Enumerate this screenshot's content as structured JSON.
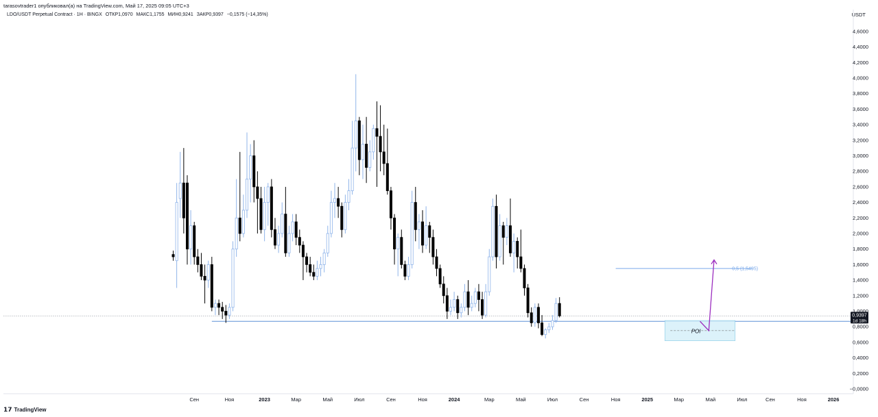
{
  "header": {
    "publisher_line": "tarasovtrader1 опубликовал(а) на TradingView.com, Май 17, 2025 09:05 UTC+3",
    "symbol": "LDO/USDT Perpetual Contract · 1H · BINGX",
    "open": "ОТКР1,0970",
    "high": "МАКС1,1755",
    "low": "МИН0,9241",
    "close": "ЗАКР0,9397",
    "change": "−0,1575 (−14,35%)",
    "currency": "USDT"
  },
  "brand": {
    "mark": "𝟭𝟳",
    "name": "TradingView"
  },
  "colors": {
    "up": "#8fb4ea",
    "down": "#000000",
    "level_line": "#5d8fd6",
    "fib_line": "#7aa9ea",
    "poi_fill": "#d6f0fa",
    "poi_border": "#7fc8e6",
    "arrow": "#9b2dbf",
    "last_price_bg": "#131722"
  },
  "chart_data": {
    "type": "candlestick",
    "ylim": [
      -0.1,
      4.7
    ],
    "y_ticks": [
      "4,6000",
      "4,4000",
      "4,2000",
      "4,0000",
      "3,8000",
      "3,6000",
      "3,4000",
      "3,2000",
      "3,0000",
      "2,8000",
      "2,6000",
      "2,4000",
      "2,2000",
      "2,0000",
      "1,8000",
      "1,6000",
      "1,4000",
      "1,2000",
      "1,0000",
      "0,8000",
      "0,6000",
      "0,4000",
      "0,2000",
      "−0,0000"
    ],
    "y_tick_values": [
      4.6,
      4.4,
      4.2,
      4.0,
      3.8,
      3.6,
      3.4,
      3.2,
      3.0,
      2.8,
      2.6,
      2.4,
      2.2,
      2.0,
      1.8,
      1.6,
      1.4,
      1.2,
      1.0,
      0.8,
      0.6,
      0.4,
      0.2,
      0.0
    ],
    "x_ticks": [
      {
        "label": "Сен",
        "i": 6,
        "year": false
      },
      {
        "label": "Ноя",
        "i": 16,
        "year": false
      },
      {
        "label": "2023",
        "i": 26,
        "year": true
      },
      {
        "label": "Мар",
        "i": 35,
        "year": false
      },
      {
        "label": "Май",
        "i": 44,
        "year": false
      },
      {
        "label": "Июл",
        "i": 53,
        "year": false
      },
      {
        "label": "Сен",
        "i": 62,
        "year": false
      },
      {
        "label": "Ноя",
        "i": 71,
        "year": false
      },
      {
        "label": "2024",
        "i": 80,
        "year": true
      },
      {
        "label": "Мар",
        "i": 90,
        "year": false
      },
      {
        "label": "Май",
        "i": 99,
        "year": false
      },
      {
        "label": "Июл",
        "i": 108,
        "year": false
      },
      {
        "label": "Сен",
        "i": 117,
        "year": false
      },
      {
        "label": "Ноя",
        "i": 126,
        "year": false
      },
      {
        "label": "2025",
        "i": 135,
        "year": true
      },
      {
        "label": "Мар",
        "i": 144,
        "year": false
      },
      {
        "label": "Май",
        "i": 153,
        "year": false
      },
      {
        "label": "Июл",
        "i": 162,
        "year": false
      },
      {
        "label": "Сен",
        "i": 170,
        "year": false
      },
      {
        "label": "Ноя",
        "i": 179,
        "year": false
      },
      {
        "label": "2026",
        "i": 188,
        "year": true
      }
    ],
    "candles": [
      [
        1.73,
        1.78,
        1.7,
        1.65
      ],
      [
        1.65,
        2.65,
        2.4,
        1.3
      ],
      [
        2.45,
        3.05,
        2.65,
        2.2
      ],
      [
        2.65,
        3.1,
        2.2,
        2.0
      ],
      [
        2.65,
        2.75,
        1.8,
        1.6
      ],
      [
        1.8,
        2.3,
        2.1,
        1.6
      ],
      [
        2.1,
        2.15,
        1.7,
        1.6
      ],
      [
        1.7,
        1.8,
        1.6,
        1.5
      ],
      [
        1.6,
        1.75,
        1.45,
        1.4
      ],
      [
        1.45,
        1.6,
        1.4,
        1.1
      ],
      [
        1.4,
        1.65,
        1.6,
        1.3
      ],
      [
        1.6,
        1.7,
        1.05,
        1.0
      ],
      [
        1.05,
        1.15,
        1.1,
        0.95
      ],
      [
        1.1,
        1.15,
        1.05,
        0.95
      ],
      [
        1.05,
        1.12,
        1.0,
        0.9
      ],
      [
        1.0,
        1.08,
        0.95,
        0.85
      ],
      [
        0.95,
        1.1,
        1.05,
        0.9
      ],
      [
        1.05,
        1.9,
        1.8,
        1.0
      ],
      [
        1.8,
        2.7,
        2.2,
        1.7
      ],
      [
        2.2,
        3.05,
        2.0,
        1.9
      ],
      [
        2.0,
        2.5,
        2.3,
        1.95
      ],
      [
        2.3,
        3.3,
        2.7,
        2.2
      ],
      [
        2.7,
        3.15,
        3.0,
        2.4
      ],
      [
        3.0,
        3.2,
        2.6,
        2.4
      ],
      [
        2.6,
        2.8,
        2.45,
        2.0
      ],
      [
        2.45,
        2.6,
        2.05,
        2.0
      ],
      [
        2.05,
        2.6,
        2.4,
        1.9
      ],
      [
        2.4,
        2.65,
        2.6,
        2.1
      ],
      [
        2.6,
        2.7,
        2.05,
        1.95
      ],
      [
        2.05,
        2.2,
        1.85,
        1.8
      ],
      [
        1.85,
        2.1,
        2.0,
        1.75
      ],
      [
        2.0,
        2.4,
        2.25,
        1.95
      ],
      [
        2.25,
        2.6,
        1.75,
        1.7
      ],
      [
        1.75,
        2.1,
        2.0,
        1.7
      ],
      [
        2.0,
        2.25,
        2.15,
        1.9
      ],
      [
        2.15,
        2.25,
        1.95,
        1.85
      ],
      [
        1.95,
        2.05,
        1.85,
        1.75
      ],
      [
        1.85,
        1.9,
        1.7,
        1.4
      ],
      [
        1.7,
        1.75,
        1.6,
        1.5
      ],
      [
        1.6,
        1.7,
        1.5,
        1.45
      ],
      [
        1.5,
        1.6,
        1.45,
        1.4
      ],
      [
        1.45,
        1.65,
        1.55,
        1.4
      ],
      [
        1.55,
        1.7,
        1.6,
        1.45
      ],
      [
        1.6,
        1.8,
        1.75,
        1.5
      ],
      [
        1.75,
        2.1,
        2.0,
        1.7
      ],
      [
        2.0,
        2.55,
        2.4,
        1.95
      ],
      [
        2.4,
        2.65,
        2.45,
        2.2
      ],
      [
        2.45,
        2.6,
        2.35,
        2.2
      ],
      [
        2.35,
        2.4,
        2.05,
        1.95
      ],
      [
        2.05,
        2.5,
        2.4,
        2.0
      ],
      [
        2.4,
        2.7,
        2.55,
        2.3
      ],
      [
        2.55,
        3.45,
        3.1,
        2.5
      ],
      [
        3.1,
        4.05,
        3.45,
        2.8
      ],
      [
        3.45,
        3.5,
        2.95,
        2.75
      ],
      [
        2.95,
        3.4,
        3.15,
        2.7
      ],
      [
        3.15,
        3.5,
        2.85,
        2.65
      ],
      [
        2.85,
        3.2,
        3.05,
        2.8
      ],
      [
        3.05,
        3.4,
        3.35,
        2.95
      ],
      [
        3.35,
        3.7,
        3.25,
        2.6
      ],
      [
        3.25,
        3.65,
        3.05,
        2.8
      ],
      [
        3.05,
        3.4,
        2.9,
        2.75
      ],
      [
        2.9,
        3.35,
        2.55,
        2.5
      ],
      [
        2.55,
        2.6,
        2.2,
        2.05
      ],
      [
        2.2,
        2.25,
        1.8,
        1.6
      ],
      [
        1.8,
        2.0,
        1.95,
        1.45
      ],
      [
        1.95,
        2.05,
        1.6,
        1.55
      ],
      [
        1.6,
        1.65,
        1.45,
        1.4
      ],
      [
        1.45,
        1.7,
        1.6,
        1.4
      ],
      [
        1.6,
        2.55,
        2.4,
        1.55
      ],
      [
        2.4,
        2.6,
        2.05,
        1.9
      ],
      [
        2.05,
        2.25,
        2.15,
        1.8
      ],
      [
        2.15,
        2.3,
        1.85,
        1.75
      ],
      [
        1.85,
        2.35,
        2.1,
        1.8
      ],
      [
        2.1,
        2.15,
        1.95,
        1.75
      ],
      [
        1.95,
        2.05,
        1.7,
        1.6
      ],
      [
        1.7,
        1.8,
        1.55,
        1.45
      ],
      [
        1.55,
        1.6,
        1.35,
        1.3
      ],
      [
        1.35,
        1.45,
        1.2,
        1.1
      ],
      [
        1.2,
        1.3,
        1.0,
        0.9
      ],
      [
        1.0,
        1.15,
        1.05,
        0.95
      ],
      [
        1.05,
        1.25,
        1.15,
        1.0
      ],
      [
        1.15,
        1.2,
        0.98,
        0.9
      ],
      [
        0.98,
        1.1,
        1.05,
        0.92
      ],
      [
        1.05,
        1.35,
        1.25,
        1.0
      ],
      [
        1.25,
        1.4,
        1.05,
        0.95
      ],
      [
        1.05,
        1.2,
        1.1,
        1.0
      ],
      [
        1.1,
        1.3,
        1.25,
        1.05
      ],
      [
        1.25,
        1.35,
        1.15,
        1.0
      ],
      [
        1.15,
        1.25,
        0.95,
        0.9
      ],
      [
        0.95,
        1.35,
        1.25,
        0.92
      ],
      [
        1.25,
        1.8,
        1.7,
        1.2
      ],
      [
        1.7,
        2.45,
        2.35,
        1.65
      ],
      [
        2.35,
        2.5,
        1.7,
        1.55
      ],
      [
        1.7,
        2.25,
        2.1,
        1.65
      ],
      [
        2.1,
        2.15,
        1.95,
        1.6
      ],
      [
        1.95,
        2.2,
        2.1,
        1.85
      ],
      [
        2.1,
        2.45,
        1.75,
        1.7
      ],
      [
        1.75,
        2.0,
        1.9,
        1.5
      ],
      [
        1.9,
        1.95,
        1.7,
        1.55
      ],
      [
        1.7,
        2.05,
        1.55,
        1.5
      ],
      [
        1.55,
        1.6,
        1.3,
        1.2
      ],
      [
        1.3,
        1.35,
        0.98,
        0.92
      ],
      [
        0.98,
        1.05,
        0.85,
        0.8
      ],
      [
        0.85,
        1.1,
        1.05,
        0.8
      ],
      [
        1.05,
        1.1,
        0.85,
        0.78
      ],
      [
        0.85,
        0.95,
        0.7,
        0.68
      ],
      [
        0.7,
        0.78,
        0.76,
        0.65
      ],
      [
        0.76,
        0.85,
        0.8,
        0.72
      ],
      [
        0.8,
        0.95,
        0.88,
        0.76
      ],
      [
        0.88,
        1.17,
        1.1,
        0.85
      ],
      [
        1.1,
        1.18,
        0.94,
        0.92
      ]
    ],
    "annotations": [
      {
        "type": "hline",
        "y": 0.87,
        "from_i": 11,
        "to_end": true,
        "color_key": "level_line"
      },
      {
        "type": "hline",
        "y": 1.5495,
        "from_i": 126,
        "to_i": 165,
        "label": "0,5 (1,5495)",
        "color_key": "fib_line"
      },
      {
        "type": "zone",
        "y_top": 0.88,
        "y_bottom": 0.62,
        "from_i": 140,
        "to_i": 160,
        "label": "POI"
      },
      {
        "type": "arrow",
        "points": [
          [
            150,
            0.87
          ],
          [
            152.5,
            0.75
          ],
          [
            154,
            1.66
          ]
        ]
      }
    ],
    "last_price": {
      "value": 0.9397,
      "label": "0,9397",
      "sub_label": "1d 18h"
    }
  }
}
